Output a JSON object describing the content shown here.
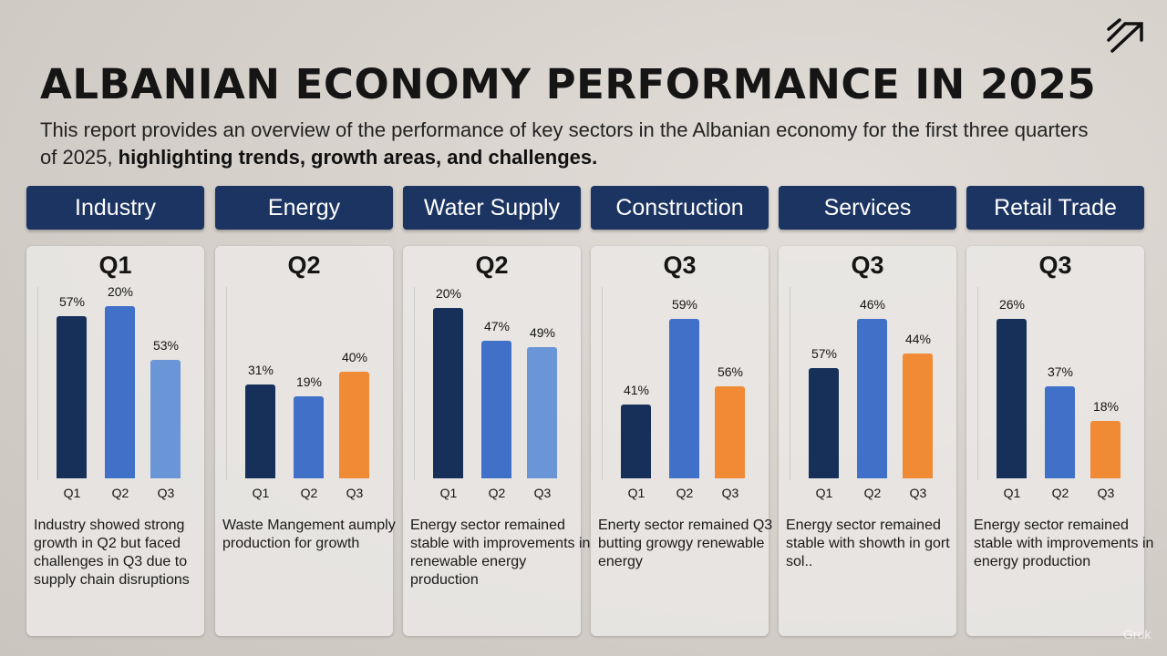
{
  "title": "ALBANIAN ECONOMY PERFORMANCE IN 2025",
  "subtitle_plain": "This report provides an overview of the performance of key sectors in the Albanian economy for the first three quarters of 2025, ",
  "subtitle_bold": "highlighting trends, growth areas, and challenges.",
  "watermark": "Grok",
  "colors": {
    "navy": "#16305a",
    "blue": "#4070c8",
    "light_blue": "#6a96d8",
    "orange": "#f08a35",
    "header": "#1c3461"
  },
  "chart_data": [
    {
      "type": "bar",
      "sector": "Industry",
      "quarter_title": "Q1",
      "categories": [
        "Q1",
        "Q2",
        "Q3"
      ],
      "labels": [
        "57%",
        "20%",
        "53%"
      ],
      "bar_level": [
        0.79,
        0.84,
        0.58
      ],
      "bar_colors": [
        "navy",
        "blue",
        "light_blue"
      ],
      "description": "Industry showed strong growth in Q2 but faced challenges in Q3 due to supply chain disruptions"
    },
    {
      "type": "bar",
      "sector": "Energy",
      "quarter_title": "Q2",
      "categories": [
        "Q1",
        "Q2",
        "Q3"
      ],
      "labels": [
        "31%",
        "19%",
        "40%"
      ],
      "bar_level": [
        0.46,
        0.4,
        0.52
      ],
      "bar_colors": [
        "navy",
        "blue",
        "orange"
      ],
      "description": "Waste Mangement aumply production for growth"
    },
    {
      "type": "bar",
      "sector": "Water Supply",
      "quarter_title": "Q2",
      "categories": [
        "Q1",
        "Q2",
        "Q3"
      ],
      "labels": [
        "20%",
        "47%",
        "49%"
      ],
      "bar_level": [
        0.83,
        0.67,
        0.64
      ],
      "bar_colors": [
        "navy",
        "blue",
        "light_blue"
      ],
      "description": "Energy sector remained stable with improvements in renewable energy production"
    },
    {
      "type": "bar",
      "sector": "Construction",
      "quarter_title": "Q3",
      "categories": [
        "Q1",
        "Q2",
        "Q3"
      ],
      "labels": [
        "41%",
        "59%",
        "56%"
      ],
      "bar_level": [
        0.36,
        0.78,
        0.45
      ],
      "bar_colors": [
        "navy",
        "blue",
        "orange"
      ],
      "description": "Enerty sector remained Q3 butting growgy renewable energy"
    },
    {
      "type": "bar",
      "sector": "Services",
      "quarter_title": "Q3",
      "categories": [
        "Q1",
        "Q2",
        "Q3"
      ],
      "labels": [
        "57%",
        "46%",
        "44%"
      ],
      "bar_level": [
        0.54,
        0.78,
        0.61
      ],
      "bar_colors": [
        "navy",
        "blue",
        "orange"
      ],
      "description": "Energy sector remained stable with showth in gort sol.."
    },
    {
      "type": "bar",
      "sector": "Retail Trade",
      "quarter_title": "Q3",
      "categories": [
        "Q1",
        "Q2",
        "Q3"
      ],
      "labels": [
        "26%",
        "37%",
        "18%"
      ],
      "bar_level": [
        0.78,
        0.45,
        0.28
      ],
      "bar_colors": [
        "navy",
        "blue",
        "orange"
      ],
      "description": "Energy sector remained stable with improvements in energy production"
    }
  ]
}
